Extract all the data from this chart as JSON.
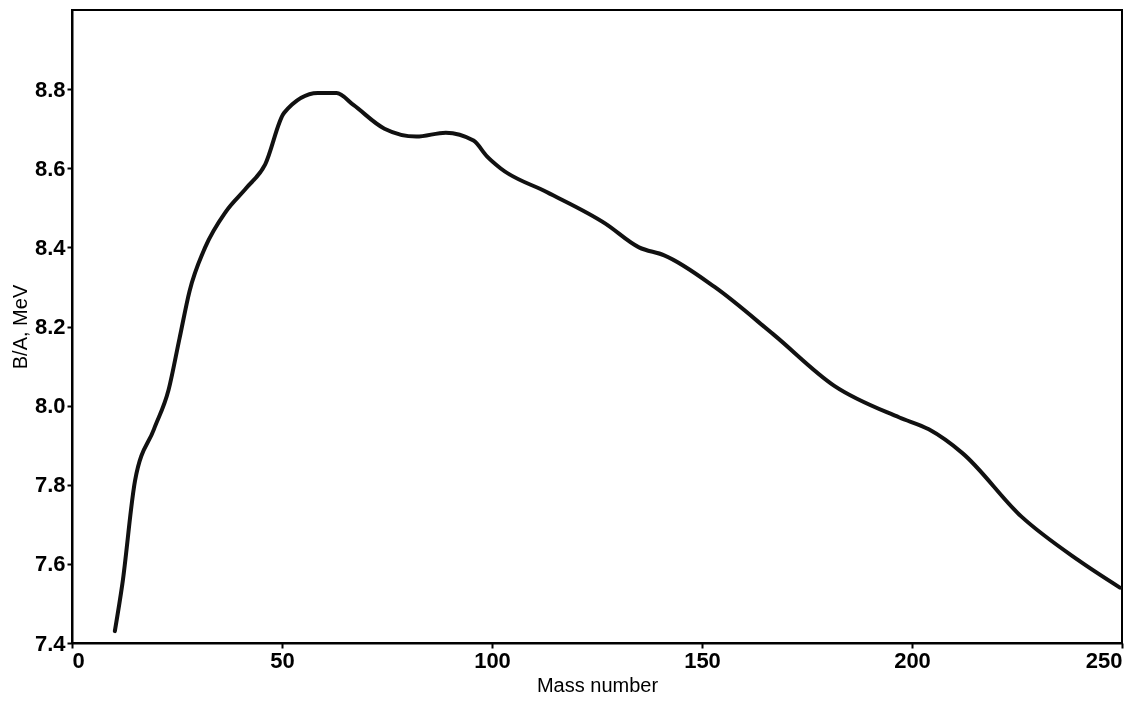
{
  "chart_data": {
    "type": "line",
    "xlabel": "Mass number",
    "ylabel": "B/A, MeV",
    "x": [
      10.2,
      12,
      15,
      19.5,
      23,
      25.6,
      28,
      31.7,
      36.6,
      41.5,
      46,
      50.5,
      58.5,
      63,
      67,
      74.4,
      82,
      89,
      95.6,
      98.8,
      102,
      113,
      127,
      135,
      141,
      153,
      167,
      181.5,
      197,
      204,
      212,
      226,
      239.5,
      249.5
    ],
    "series": [
      {
        "color": "#111111",
        "values": [
          7.43,
          7.55,
          7.81,
          7.94,
          8.04,
          8.17,
          8.29,
          8.4,
          8.49,
          8.55,
          8.61,
          8.74,
          8.79,
          8.79,
          8.76,
          8.7,
          8.68,
          8.69,
          8.67,
          8.63,
          8.6,
          8.54,
          8.46,
          8.4,
          8.38,
          8.3,
          8.18,
          8.05,
          7.97,
          7.94,
          7.88,
          7.72,
          7.61,
          7.54
        ]
      }
    ],
    "xlim": [
      0,
      250
    ],
    "xticks": [
      0,
      50,
      100,
      150,
      200,
      250
    ],
    "ylim": [
      7.4,
      9.0
    ],
    "yticks": [
      7.4,
      7.6,
      7.8,
      {
        "value": 8,
        "label": "8.0"
      },
      8.2,
      8.4,
      8.6,
      8.8
    ],
    "grid": false,
    "marker": "none",
    "line_style": "solid"
  }
}
